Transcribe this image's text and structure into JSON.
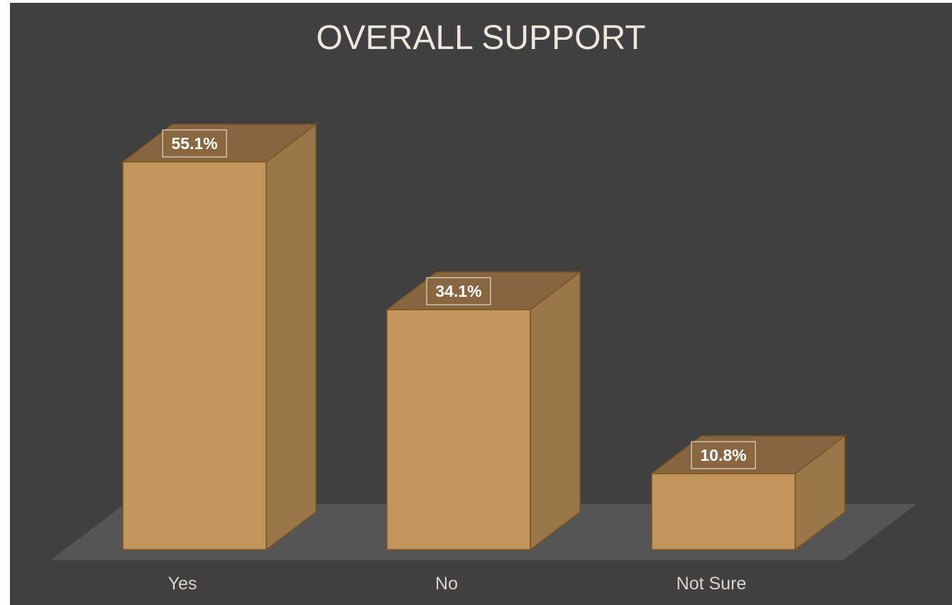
{
  "chart_data": {
    "type": "bar",
    "title": "OVERALL SUPPORT",
    "categories": [
      "Yes",
      "No",
      "Not Sure"
    ],
    "values": [
      55.1,
      34.1,
      10.8
    ],
    "data_labels": [
      "55.1%",
      "34.1%",
      "10.8%"
    ],
    "ylim": [
      0,
      55.1
    ],
    "grid": false,
    "legend": "none",
    "three_d": true
  },
  "colors": {
    "background": "#404040",
    "floor": "#555555",
    "bar_front": "#c2955c",
    "bar_top": "#866641",
    "bar_side": "#9a7748",
    "bar_edge": "#7a5522",
    "text": "#ece6dc"
  }
}
